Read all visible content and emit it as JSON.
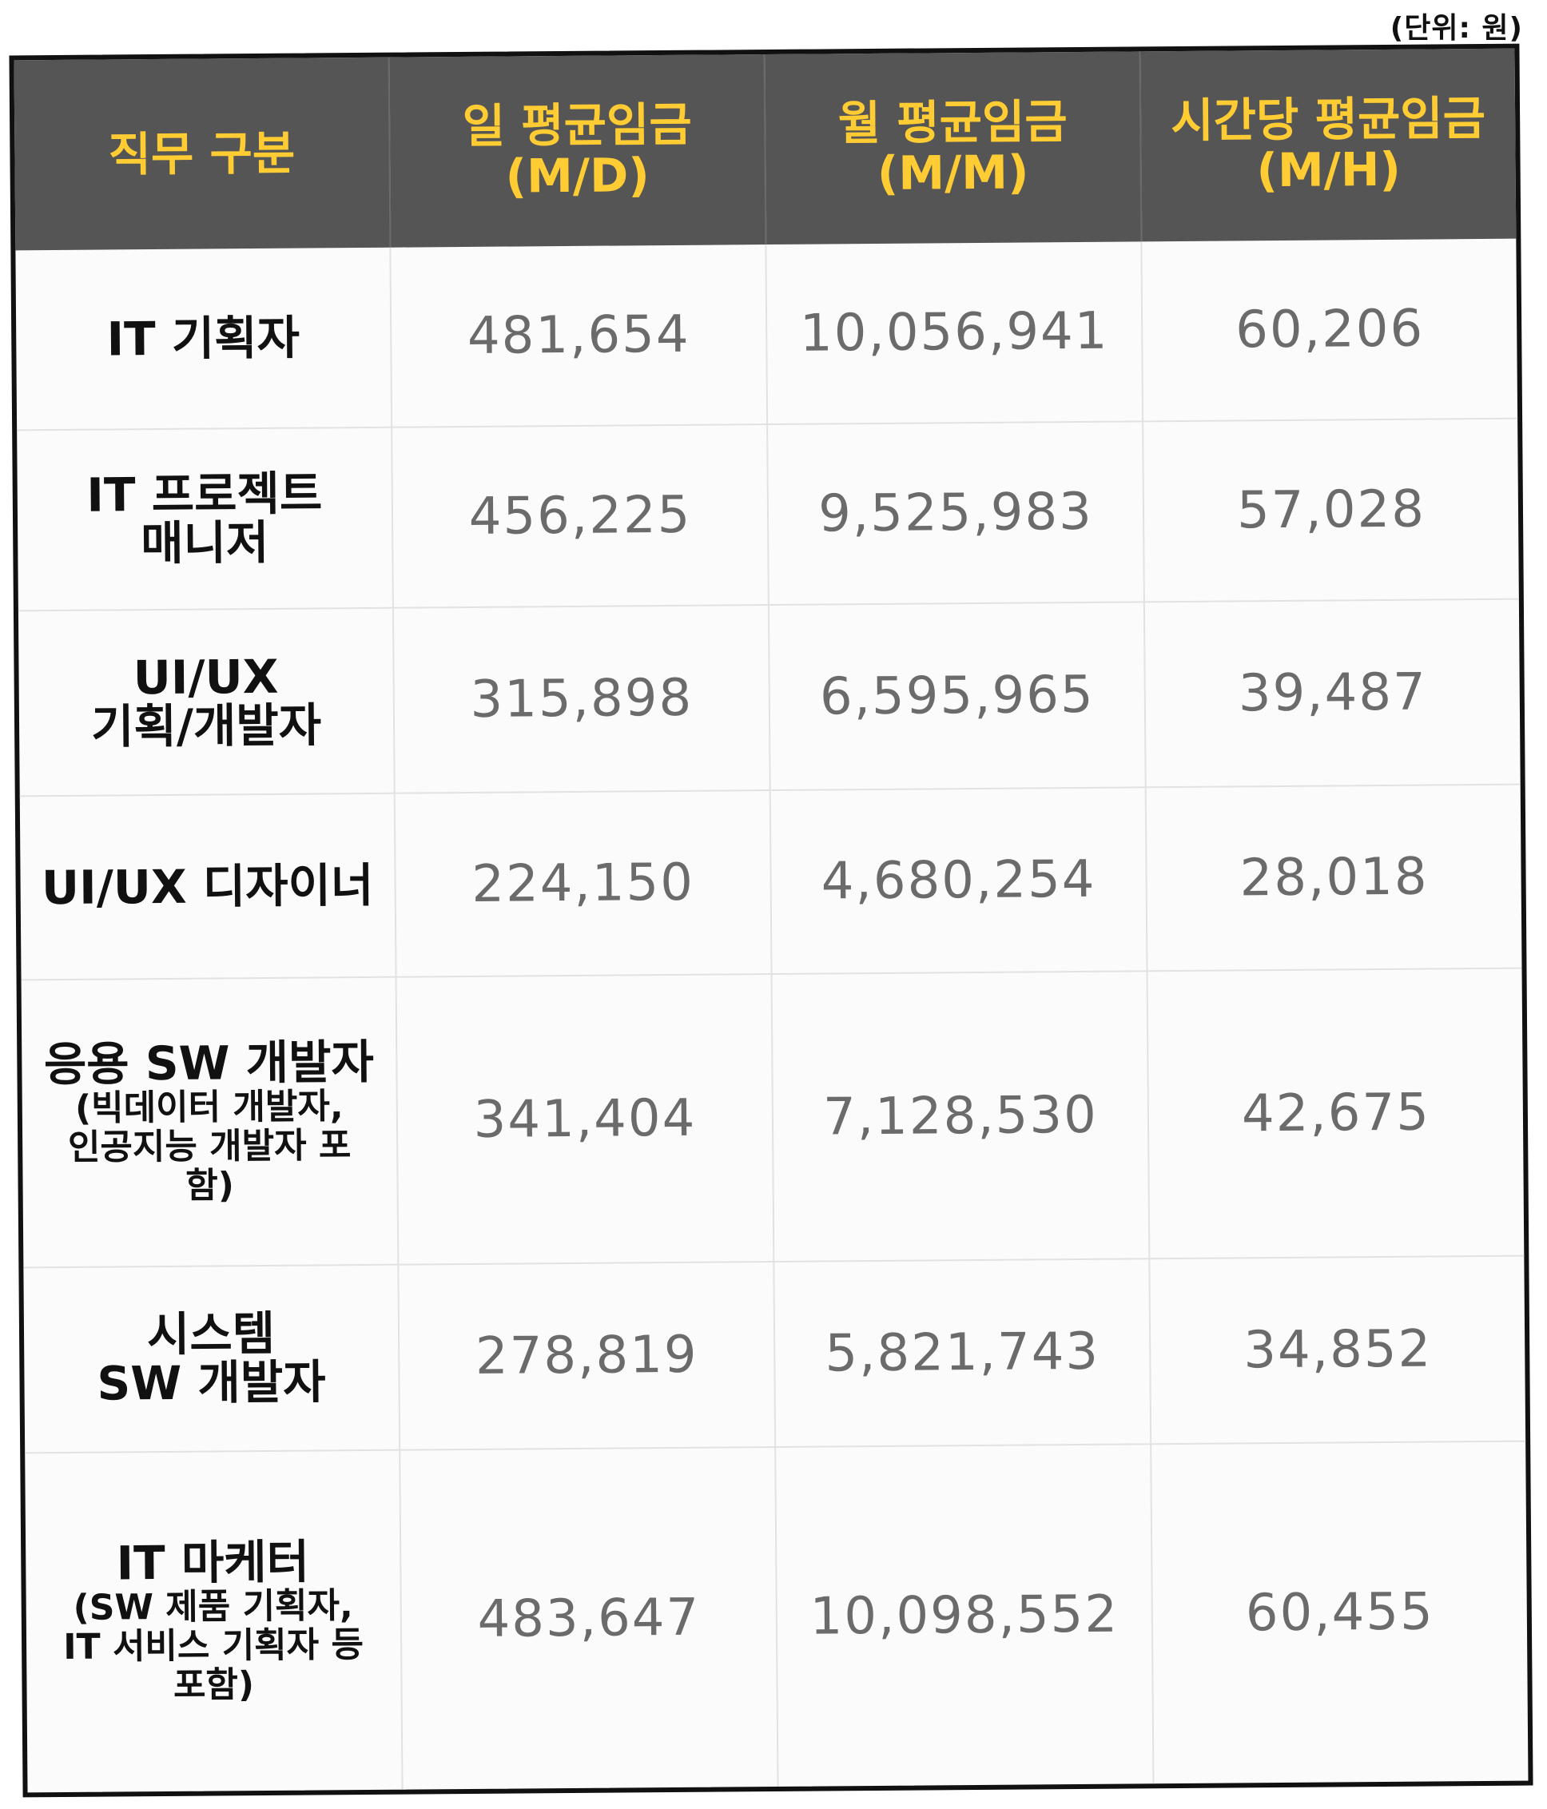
{
  "unit_note": "(단위: 원)",
  "table": {
    "headers": [
      "직무 구분",
      "일 평균임금\n(M/D)",
      "월 평균임금\n(M/M)",
      "시간당 평균임금\n(M/H)"
    ],
    "rows": [
      {
        "role": "IT 기획자",
        "role_sub": "",
        "daily": "481,654",
        "monthly": "10,056,941",
        "hourly": "60,206"
      },
      {
        "role": "IT 프로젝트\n매니저",
        "role_sub": "",
        "daily": "456,225",
        "monthly": "9,525,983",
        "hourly": "57,028"
      },
      {
        "role": "UI/UX\n기획/개발자",
        "role_sub": "",
        "daily": "315,898",
        "monthly": "6,595,965",
        "hourly": "39,487"
      },
      {
        "role": "UI/UX 디자이너",
        "role_sub": "",
        "daily": "224,150",
        "monthly": "4,680,254",
        "hourly": "28,018"
      },
      {
        "role": "응용 SW 개발자",
        "role_sub": "(빅데이터 개발자,\n인공지능 개발자 포\n함)",
        "daily": "341,404",
        "monthly": "7,128,530",
        "hourly": "42,675"
      },
      {
        "role": "시스템\nSW 개발자",
        "role_sub": "",
        "daily": "278,819",
        "monthly": "5,821,743",
        "hourly": "34,852"
      },
      {
        "role": "IT 마케터",
        "role_sub": "(SW 제품 기획자,\nIT 서비스 기획자 등\n포함)",
        "daily": "483,647",
        "monthly": "10,098,552",
        "hourly": "60,455"
      }
    ]
  }
}
